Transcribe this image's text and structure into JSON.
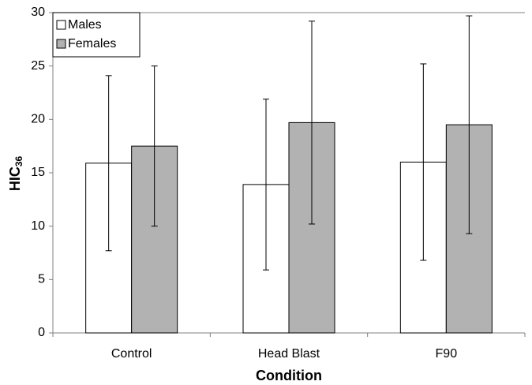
{
  "chart_data": {
    "type": "bar",
    "ylabel": "HIC",
    "ylabel_subscript": "36",
    "xlabel": "Condition",
    "categories": [
      "Control",
      "Head Blast",
      "F90"
    ],
    "series": [
      {
        "name": "Males",
        "color": "#ffffff",
        "values": [
          15.9,
          13.9,
          16.0
        ],
        "errors": [
          8.2,
          8.0,
          9.2
        ]
      },
      {
        "name": "Females",
        "color": "#b2b2b2",
        "values": [
          17.5,
          19.7,
          19.5
        ],
        "errors": [
          7.5,
          9.5,
          10.2
        ]
      }
    ],
    "ylim": [
      0,
      30
    ],
    "yticks": [
      0,
      5,
      10,
      15,
      20,
      25,
      30
    ],
    "grid": false,
    "legend": "top-left"
  }
}
